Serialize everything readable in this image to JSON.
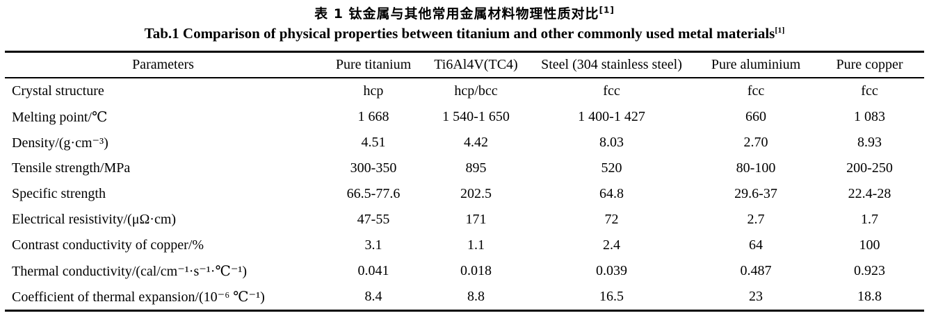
{
  "page": {
    "background": "#ffffff",
    "text_color": "#000000"
  },
  "titles": {
    "chinese": "表 1  钛金属与其他常用金属材料物理性质对比",
    "chinese_ref": "[1]",
    "english": "Tab.1 Comparison of physical properties between titanium and other commonly used metal materials",
    "english_ref": "[1]"
  },
  "table": {
    "columns": [
      "Parameters",
      "Pure titanium",
      "Ti6Al4V(TC4)",
      "Steel (304 stainless steel)",
      "Pure aluminium",
      "Pure copper"
    ],
    "rows": [
      {
        "parameter": "Crystal structure",
        "values": [
          "hcp",
          "hcp/bcc",
          "fcc",
          "fcc",
          "fcc"
        ]
      },
      {
        "parameter": "Melting point/℃",
        "values": [
          "1 668",
          "1 540-1 650",
          "1 400-1 427",
          "660",
          "1 083"
        ]
      },
      {
        "parameter": "Density/(g·cm⁻³)",
        "values": [
          "4.51",
          "4.42",
          "8.03",
          "2.70",
          "8.93"
        ]
      },
      {
        "parameter": "Tensile strength/MPa",
        "values": [
          "300-350",
          "895",
          "520",
          "80-100",
          "200-250"
        ]
      },
      {
        "parameter": "Specific strength",
        "values": [
          "66.5-77.6",
          "202.5",
          "64.8",
          "29.6-37",
          "22.4-28"
        ]
      },
      {
        "parameter": "Electrical resistivity/(μΩ·cm)",
        "values": [
          "47-55",
          "171",
          "72",
          "2.7",
          "1.7"
        ]
      },
      {
        "parameter": "Contrast conductivity of copper/%",
        "values": [
          "3.1",
          "1.1",
          "2.4",
          "64",
          "100"
        ]
      },
      {
        "parameter": "Thermal conductivity/(cal/cm⁻¹·s⁻¹·℃⁻¹)",
        "values": [
          "0.041",
          "0.018",
          "0.039",
          "0.487",
          "0.923"
        ]
      },
      {
        "parameter": "Coefficient of thermal expansion/(10⁻⁶ ℃⁻¹)",
        "values": [
          "8.4",
          "8.8",
          "16.5",
          "23",
          "18.8"
        ]
      }
    ]
  }
}
